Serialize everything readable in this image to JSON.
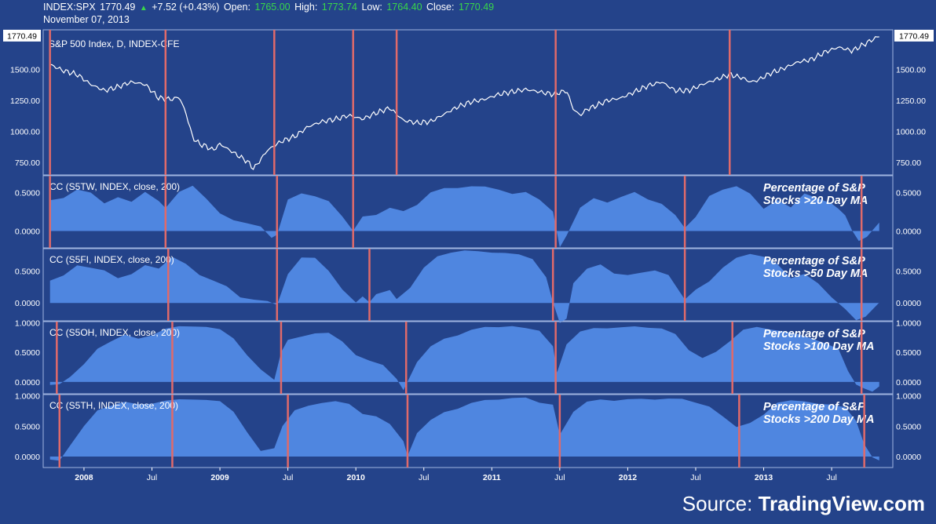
{
  "header": {
    "symbol": "INDEX:SPX",
    "last": "1770.49",
    "change": "+7.52 (+0.43%)",
    "open_label": "Open:",
    "open": "1765.00",
    "high_label": "High:",
    "high": "1773.74",
    "low_label": "Low:",
    "low": "1764.40",
    "close_label": "Close:",
    "close": "1770.49",
    "date": "November 07, 2013"
  },
  "source": {
    "prefix": "Source: ",
    "brand": "TradingView.com"
  },
  "colors": {
    "background": "#24438a",
    "area_fill": "#4f86e0",
    "vline": "#e06a6a",
    "price_line": "#ffffff",
    "up": "#38d64a",
    "panel_border": "#9fb4e0"
  },
  "chart_data": [
    {
      "type": "line",
      "title": "S&P 500 Index, D, INDEX-CFE",
      "last_value_label": "1770.49",
      "ylim": [
        650,
        1820
      ],
      "y_ticks": [
        "1500.00",
        "1250.00",
        "1000.00",
        "750.00"
      ],
      "x_ticks": [
        "2008",
        "Jul",
        "2009",
        "Jul",
        "2010",
        "Jul",
        "2011",
        "Jul",
        "2012",
        "Jul",
        "2013",
        "Jul"
      ],
      "x": [
        2007.75,
        2007.85,
        2007.95,
        2008.05,
        2008.15,
        2008.25,
        2008.35,
        2008.45,
        2008.55,
        2008.65,
        2008.7,
        2008.75,
        2008.8,
        2008.85,
        2008.9,
        2008.95,
        2009.0,
        2009.1,
        2009.2,
        2009.25,
        2009.35,
        2009.45,
        2009.55,
        2009.65,
        2009.75,
        2009.85,
        2009.95,
        2010.05,
        2010.15,
        2010.25,
        2010.35,
        2010.45,
        2010.55,
        2010.65,
        2010.75,
        2010.85,
        2010.95,
        2011.05,
        2011.15,
        2011.25,
        2011.35,
        2011.45,
        2011.55,
        2011.6,
        2011.65,
        2011.7,
        2011.75,
        2011.85,
        2011.95,
        2012.05,
        2012.15,
        2012.25,
        2012.35,
        2012.45,
        2012.55,
        2012.65,
        2012.75,
        2012.85,
        2012.9,
        2012.95,
        2013.05,
        2013.15,
        2013.25,
        2013.35,
        2013.45,
        2013.55,
        2013.65,
        2013.75,
        2013.85
      ],
      "y": [
        1540,
        1490,
        1460,
        1380,
        1330,
        1360,
        1400,
        1380,
        1270,
        1260,
        1280,
        1150,
        950,
        900,
        880,
        850,
        900,
        830,
        760,
        700,
        850,
        920,
        960,
        1040,
        1080,
        1100,
        1130,
        1100,
        1150,
        1190,
        1090,
        1070,
        1080,
        1140,
        1200,
        1240,
        1260,
        1300,
        1320,
        1340,
        1320,
        1300,
        1330,
        1180,
        1130,
        1180,
        1200,
        1250,
        1270,
        1320,
        1370,
        1400,
        1330,
        1330,
        1380,
        1420,
        1460,
        1430,
        1400,
        1410,
        1470,
        1510,
        1560,
        1580,
        1640,
        1680,
        1650,
        1710,
        1770
      ],
      "events": [
        2007.75,
        2008.6,
        2009.4,
        2009.98,
        2010.3,
        2011.47,
        2012.75
      ]
    },
    {
      "type": "area",
      "title": "CC (S5TW, INDEX, close, 200)",
      "annotation": [
        "Percentage of S&P",
        "Stocks >20 Day MA"
      ],
      "ylim": [
        -0.22,
        0.72
      ],
      "y_ticks": [
        "0.5000",
        "0.0000"
      ],
      "x": [
        2007.75,
        2007.85,
        2007.95,
        2008.05,
        2008.15,
        2008.25,
        2008.35,
        2008.45,
        2008.55,
        2008.6,
        2008.7,
        2008.8,
        2008.9,
        2009.0,
        2009.1,
        2009.2,
        2009.3,
        2009.38,
        2009.42,
        2009.5,
        2009.6,
        2009.7,
        2009.8,
        2009.9,
        2009.98,
        2010.05,
        2010.15,
        2010.25,
        2010.35,
        2010.45,
        2010.55,
        2010.65,
        2010.75,
        2010.85,
        2010.95,
        2011.05,
        2011.15,
        2011.25,
        2011.35,
        2011.45,
        2011.5,
        2011.55,
        2011.65,
        2011.75,
        2011.85,
        2011.95,
        2012.05,
        2012.15,
        2012.25,
        2012.35,
        2012.42,
        2012.5,
        2012.6,
        2012.7,
        2012.8,
        2012.9,
        2013.0,
        2013.1,
        2013.2,
        2013.3,
        2013.4,
        2013.5,
        2013.55,
        2013.6,
        2013.65,
        2013.7,
        2013.76,
        2013.8,
        2013.85
      ],
      "y": [
        0.4,
        0.42,
        0.55,
        0.5,
        0.35,
        0.45,
        0.38,
        0.5,
        0.4,
        0.3,
        0.5,
        0.6,
        0.42,
        0.22,
        0.15,
        0.1,
        0.05,
        -0.08,
        -0.05,
        0.4,
        0.5,
        0.45,
        0.38,
        0.2,
        0.0,
        0.18,
        0.22,
        0.3,
        0.25,
        0.35,
        0.5,
        0.55,
        0.57,
        0.58,
        0.57,
        0.55,
        0.48,
        0.5,
        0.42,
        0.25,
        -0.22,
        -0.05,
        0.3,
        0.42,
        0.38,
        0.44,
        0.5,
        0.42,
        0.35,
        0.2,
        0.05,
        0.18,
        0.45,
        0.55,
        0.58,
        0.48,
        0.3,
        0.4,
        0.3,
        0.5,
        0.42,
        0.35,
        0.3,
        0.2,
        0.0,
        -0.12,
        -0.08,
        0.0,
        0.12
      ],
      "events": [
        2007.75,
        2008.6,
        2009.42,
        2009.98,
        2011.47,
        2012.42,
        2013.72
      ]
    },
    {
      "type": "area",
      "title": "CC (S5FI, INDEX, close, 200)",
      "annotation": [
        "Percentage of S&P",
        "Stocks >50 Day MA"
      ],
      "ylim": [
        -0.28,
        0.85
      ],
      "y_ticks": [
        "0.5000",
        "0.0000"
      ],
      "x": [
        2007.75,
        2007.85,
        2007.95,
        2008.05,
        2008.15,
        2008.25,
        2008.35,
        2008.45,
        2008.55,
        2008.65,
        2008.75,
        2008.85,
        2008.95,
        2009.05,
        2009.15,
        2009.25,
        2009.35,
        2009.42,
        2009.5,
        2009.6,
        2009.7,
        2009.8,
        2009.9,
        2010.0,
        2010.05,
        2010.1,
        2010.15,
        2010.25,
        2010.3,
        2010.4,
        2010.5,
        2010.6,
        2010.7,
        2010.8,
        2010.9,
        2011.0,
        2011.1,
        2011.2,
        2011.3,
        2011.4,
        2011.45,
        2011.5,
        2011.55,
        2011.6,
        2011.7,
        2011.8,
        2011.9,
        2012.0,
        2012.1,
        2012.2,
        2012.3,
        2012.42,
        2012.5,
        2012.6,
        2012.7,
        2012.8,
        2012.9,
        2013.0,
        2013.1,
        2013.2,
        2013.3,
        2013.4,
        2013.5,
        2013.6,
        2013.68,
        2013.75,
        2013.85
      ],
      "y": [
        0.35,
        0.42,
        0.6,
        0.55,
        0.5,
        0.4,
        0.45,
        0.58,
        0.55,
        0.72,
        0.6,
        0.45,
        0.35,
        0.25,
        0.1,
        0.05,
        0.02,
        -0.02,
        0.45,
        0.7,
        0.72,
        0.5,
        0.2,
        0.02,
        0.1,
        0.0,
        0.15,
        0.2,
        0.05,
        0.25,
        0.55,
        0.72,
        0.8,
        0.82,
        0.8,
        0.8,
        0.78,
        0.75,
        0.7,
        0.4,
        0.0,
        -0.3,
        -0.25,
        0.3,
        0.55,
        0.6,
        0.45,
        0.45,
        0.47,
        0.5,
        0.45,
        0.05,
        0.2,
        0.35,
        0.55,
        0.7,
        0.78,
        0.72,
        0.6,
        0.4,
        0.45,
        0.3,
        0.1,
        -0.1,
        -0.28,
        -0.2,
        0.0
      ],
      "events": [
        2008.62,
        2009.42,
        2010.1,
        2011.45,
        2012.42,
        2013.72
      ]
    },
    {
      "type": "area",
      "title": "CC (S5OH, INDEX, close, 200)",
      "annotation": [
        "Percentage of S&P",
        "Stocks >100 Day MA"
      ],
      "ylim": [
        -0.2,
        1.02
      ],
      "y_ticks": [
        "1.0000",
        "0.5000",
        "0.0000"
      ],
      "x": [
        2007.75,
        2007.82,
        2007.9,
        2008.0,
        2008.1,
        2008.2,
        2008.3,
        2008.4,
        2008.5,
        2008.6,
        2008.7,
        2008.8,
        2008.9,
        2009.0,
        2009.1,
        2009.2,
        2009.3,
        2009.4,
        2009.45,
        2009.5,
        2009.6,
        2009.7,
        2009.8,
        2009.9,
        2010.0,
        2010.1,
        2010.2,
        2010.3,
        2010.35,
        2010.45,
        2010.55,
        2010.65,
        2010.75,
        2010.85,
        2010.95,
        2011.05,
        2011.15,
        2011.25,
        2011.35,
        2011.45,
        2011.48,
        2011.55,
        2011.65,
        2011.75,
        2011.85,
        2011.95,
        2012.05,
        2012.15,
        2012.25,
        2012.35,
        2012.45,
        2012.55,
        2012.65,
        2012.75,
        2012.85,
        2012.95,
        2013.05,
        2013.15,
        2013.25,
        2013.35,
        2013.45,
        2013.55,
        2013.62,
        2013.68,
        2013.74,
        2013.8,
        2013.85
      ],
      "y": [
        -0.05,
        -0.05,
        0.1,
        0.3,
        0.55,
        0.7,
        0.8,
        0.72,
        0.8,
        0.9,
        0.93,
        0.95,
        0.93,
        0.88,
        0.75,
        0.45,
        0.2,
        0.05,
        0.5,
        0.7,
        0.78,
        0.82,
        0.82,
        0.7,
        0.45,
        0.35,
        0.3,
        0.05,
        -0.15,
        0.35,
        0.6,
        0.72,
        0.8,
        0.88,
        0.92,
        0.94,
        0.94,
        0.9,
        0.88,
        0.6,
        0.15,
        0.65,
        0.85,
        0.9,
        0.92,
        0.92,
        0.93,
        0.93,
        0.9,
        0.8,
        0.55,
        0.4,
        0.5,
        0.7,
        0.88,
        0.92,
        0.9,
        0.85,
        0.8,
        0.75,
        0.65,
        0.55,
        0.2,
        -0.05,
        -0.12,
        -0.15,
        -0.08
      ],
      "events": [
        2007.8,
        2008.65,
        2009.45,
        2010.37,
        2011.47,
        2012.77,
        2013.72
      ]
    },
    {
      "type": "area",
      "title": "CC (S5TH, INDEX, close, 200)",
      "annotation": [
        "Percentage of S&P",
        "Stocks >200 Day MA"
      ],
      "ylim": [
        -0.18,
        1.02
      ],
      "y_ticks": [
        "1.0000",
        "0.5000",
        "0.0000"
      ],
      "x": [
        2007.75,
        2007.82,
        2007.9,
        2008.0,
        2008.1,
        2008.2,
        2008.3,
        2008.4,
        2008.5,
        2008.6,
        2008.7,
        2008.8,
        2008.9,
        2009.0,
        2009.1,
        2009.2,
        2009.3,
        2009.4,
        2009.46,
        2009.55,
        2009.65,
        2009.75,
        2009.85,
        2009.95,
        2010.05,
        2010.15,
        2010.25,
        2010.35,
        2010.38,
        2010.45,
        2010.55,
        2010.65,
        2010.75,
        2010.85,
        2010.95,
        2011.05,
        2011.15,
        2011.25,
        2011.35,
        2011.45,
        2011.5,
        2011.6,
        2011.7,
        2011.8,
        2011.9,
        2012.0,
        2012.1,
        2012.2,
        2012.3,
        2012.4,
        2012.5,
        2012.6,
        2012.7,
        2012.8,
        2012.9,
        2013.0,
        2013.1,
        2013.2,
        2013.3,
        2013.4,
        2013.5,
        2013.6,
        2013.68,
        2013.74,
        2013.8,
        2013.85
      ],
      "y": [
        -0.05,
        -0.08,
        0.2,
        0.5,
        0.75,
        0.85,
        0.9,
        0.85,
        0.88,
        0.92,
        0.93,
        0.95,
        0.93,
        0.9,
        0.75,
        0.4,
        0.08,
        0.15,
        0.5,
        0.75,
        0.85,
        0.88,
        0.9,
        0.88,
        0.7,
        0.65,
        0.55,
        0.25,
        0.0,
        0.4,
        0.6,
        0.72,
        0.8,
        0.88,
        0.92,
        0.95,
        0.96,
        0.96,
        0.9,
        0.85,
        0.35,
        0.75,
        0.9,
        0.93,
        0.93,
        0.94,
        0.94,
        0.95,
        0.95,
        0.94,
        0.9,
        0.82,
        0.65,
        0.5,
        0.55,
        0.68,
        0.9,
        0.92,
        0.9,
        0.88,
        0.85,
        0.8,
        0.6,
        0.2,
        -0.02,
        -0.05
      ],
      "events": [
        2007.82,
        2008.65,
        2009.5,
        2010.38,
        2011.5,
        2012.82,
        2013.74
      ]
    }
  ]
}
